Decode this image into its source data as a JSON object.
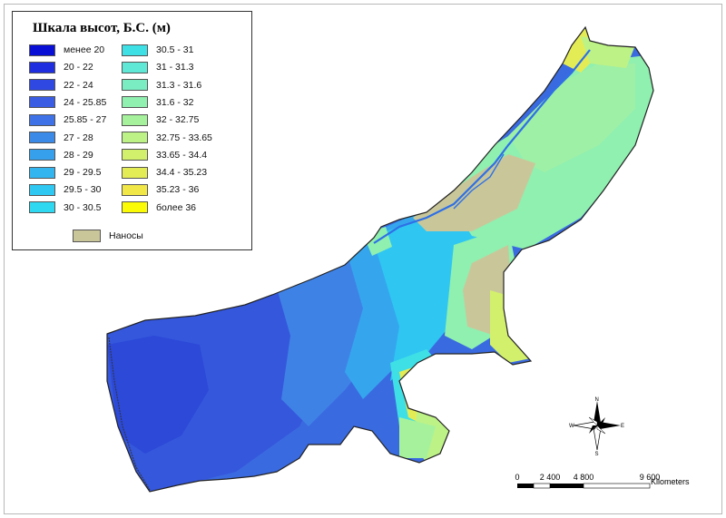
{
  "legend": {
    "title": "Шкала высот, Б.С. (м)",
    "classes": [
      {
        "label": "менее  20",
        "color": "#0a0fd6"
      },
      {
        "label": "20 - 22",
        "color": "#1f2fe0"
      },
      {
        "label": "22 - 24",
        "color": "#2f48e2"
      },
      {
        "label": "24 - 25.85",
        "color": "#3a5de4"
      },
      {
        "label": "25.85 - 27",
        "color": "#3f72e6"
      },
      {
        "label": "27 - 28",
        "color": "#3b8ae8"
      },
      {
        "label": "28 - 29",
        "color": "#37a0ec"
      },
      {
        "label": "29 - 29.5",
        "color": "#33b6f0"
      },
      {
        "label": "29.5 - 30",
        "color": "#2fc8f2"
      },
      {
        "label": "30 - 30.5",
        "color": "#2ed8f0"
      },
      {
        "label": "30.5 - 31",
        "color": "#3ee0e6"
      },
      {
        "label": "31 - 31.3",
        "color": "#5fe8d6"
      },
      {
        "label": "31.3 - 31.6",
        "color": "#7aedc2"
      },
      {
        "label": "31.6 - 32",
        "color": "#8ff0b0"
      },
      {
        "label": "32 - 32.75",
        "color": "#a6f29c"
      },
      {
        "label": "32.75 - 33.65",
        "color": "#bdf286"
      },
      {
        "label": "33.65 - 34.4",
        "color": "#d2f06c"
      },
      {
        "label": "34.4 - 35.23",
        "color": "#e4ec55"
      },
      {
        "label": "35.23 - 36",
        "color": "#f1e848"
      },
      {
        "label": "более 36",
        "color": "#fbfb06"
      }
    ],
    "sediment": {
      "label": "Наносы",
      "color": "#c9c79a"
    }
  },
  "scale_bar": {
    "ticks": [
      "0",
      "2 400",
      "4 800",
      "9 600"
    ],
    "unit": "Kilometers"
  },
  "compass": {
    "n": "N",
    "s": "S",
    "e": "E",
    "w": "W"
  }
}
